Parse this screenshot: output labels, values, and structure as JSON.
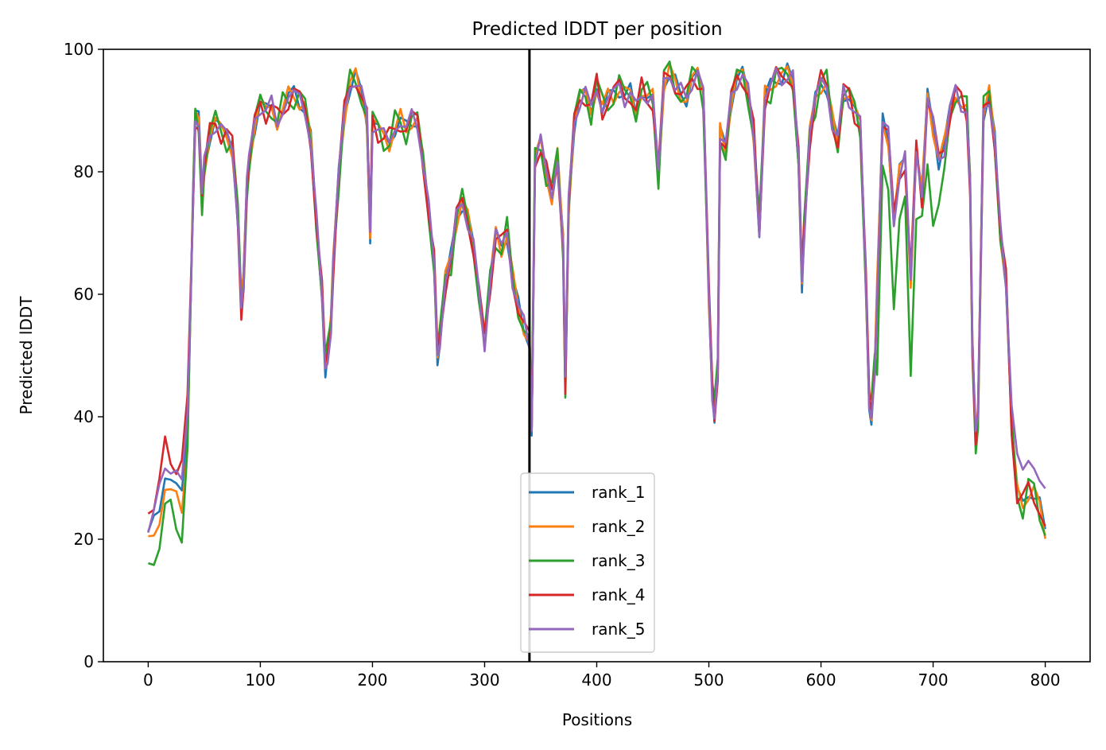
{
  "chart_data": {
    "type": "line",
    "title": "Predicted lDDT per position",
    "xlabel": "Positions",
    "ylabel": "Predicted lDDT",
    "xlim": [
      -40,
      840
    ],
    "ylim": [
      0,
      100
    ],
    "xticks": [
      0,
      100,
      200,
      300,
      400,
      500,
      600,
      700,
      800
    ],
    "yticks": [
      0,
      20,
      40,
      60,
      80,
      100
    ],
    "grid": false,
    "legend_position": "lower-center",
    "vline_x": 340,
    "vline_color": "#000000",
    "series": [
      {
        "name": "rank_1",
        "color": "#1f77b4"
      },
      {
        "name": "rank_2",
        "color": "#ff7f0e"
      },
      {
        "name": "rank_3",
        "color": "#2ca02c"
      },
      {
        "name": "rank_4",
        "color": "#d62728"
      },
      {
        "name": "rank_5",
        "color": "#9467bd"
      }
    ],
    "profile": {
      "x": [
        0,
        5,
        10,
        15,
        20,
        25,
        30,
        35,
        40,
        42,
        45,
        48,
        50,
        55,
        60,
        65,
        70,
        75,
        80,
        83,
        85,
        88,
        90,
        95,
        100,
        105,
        110,
        115,
        120,
        125,
        130,
        135,
        140,
        145,
        150,
        155,
        158,
        160,
        163,
        165,
        170,
        175,
        180,
        185,
        190,
        195,
        198,
        200,
        205,
        210,
        215,
        220,
        225,
        230,
        235,
        240,
        245,
        250,
        255,
        258,
        260,
        265,
        270,
        275,
        280,
        285,
        290,
        295,
        300,
        305,
        310,
        315,
        320,
        325,
        330,
        335,
        340,
        342,
        345,
        350,
        355,
        360,
        365,
        370,
        372,
        375,
        380,
        385,
        390,
        395,
        400,
        405,
        410,
        415,
        420,
        425,
        430,
        435,
        440,
        445,
        450,
        455,
        460,
        465,
        470,
        475,
        480,
        485,
        490,
        495,
        500,
        503,
        505,
        508,
        510,
        515,
        520,
        525,
        530,
        535,
        540,
        545,
        550,
        555,
        560,
        565,
        570,
        575,
        580,
        583,
        585,
        590,
        595,
        600,
        605,
        610,
        615,
        620,
        625,
        630,
        635,
        640,
        643,
        645,
        648,
        650,
        655,
        660,
        665,
        670,
        675,
        680,
        685,
        690,
        695,
        700,
        705,
        710,
        715,
        720,
        725,
        730,
        733,
        735,
        738,
        740,
        745,
        750,
        755,
        760,
        765,
        770,
        775,
        780,
        785,
        790,
        795,
        800
      ],
      "y": [
        22,
        24,
        27,
        32,
        31,
        30,
        29,
        40,
        75,
        89,
        88,
        76,
        81,
        86,
        88,
        87,
        86,
        84,
        72,
        58,
        62,
        78,
        82,
        88,
        91,
        90,
        91,
        88,
        90,
        92,
        93,
        92,
        90,
        85,
        72,
        60,
        48,
        50,
        55,
        65,
        80,
        90,
        94,
        95,
        93,
        89,
        70,
        88,
        87,
        86,
        85,
        87,
        88,
        87,
        89,
        88,
        82,
        74,
        65,
        50,
        52,
        62,
        66,
        73,
        75,
        72,
        68,
        60,
        52,
        62,
        70,
        68,
        70,
        62,
        58,
        55,
        52,
        38,
        82,
        85,
        80,
        76,
        82,
        68,
        45,
        75,
        88,
        92,
        93,
        90,
        94,
        90,
        92,
        93,
        94,
        92,
        93,
        90,
        93,
        92,
        92,
        80,
        95,
        96,
        94,
        93,
        92,
        95,
        96,
        93,
        60,
        44,
        40,
        48,
        86,
        84,
        92,
        95,
        96,
        93,
        86,
        70,
        92,
        94,
        96,
        95,
        96,
        95,
        82,
        62,
        70,
        86,
        92,
        95,
        94,
        88,
        85,
        93,
        92,
        90,
        88,
        62,
        42,
        40,
        48,
        60,
        88,
        86,
        72,
        80,
        82,
        62,
        84,
        76,
        92,
        88,
        82,
        84,
        90,
        93,
        91,
        90,
        78,
        52,
        36,
        40,
        90,
        92,
        85,
        70,
        62,
        38,
        28,
        26,
        28,
        27,
        25,
        22
      ]
    }
  }
}
